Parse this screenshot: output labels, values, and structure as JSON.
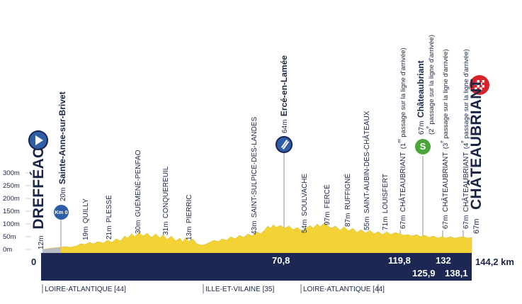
{
  "y_axis": {
    "ticks": [
      "300m",
      "250m",
      "200m",
      "150m",
      "100m",
      "50m",
      "0m"
    ]
  },
  "start": {
    "altitude": "12m",
    "name": "DREFFÉAC"
  },
  "km0": {
    "altitude": "20m",
    "name": "Sainte-Anne-sur-Brivet",
    "marker": "Km 0"
  },
  "places": [
    {
      "altitude": "19m",
      "name": "QUILLY"
    },
    {
      "altitude": "21m",
      "name": "PLESSÉ"
    },
    {
      "altitude": "30m",
      "name": "GUÉMENÉ-PENFAO"
    },
    {
      "altitude": "31m",
      "name": "CONQUEREUIL"
    },
    {
      "altitude": "13m",
      "name": "PIERRIC"
    },
    {
      "altitude": "43m",
      "name": "SAINT-SULPICE-DES-LANDES"
    },
    {
      "altitude": "54m",
      "name": "SOULVACHE"
    },
    {
      "altitude": "97m",
      "name": "FERCÉ"
    },
    {
      "altitude": "87m",
      "name": "RUFFIGNÉ"
    },
    {
      "altitude": "55m",
      "name": "SAINT-AUBIN-DES-CHÂTEAUX"
    },
    {
      "altitude": "71m",
      "name": "LOUISFERT"
    }
  ],
  "feed": {
    "altitude": "64m",
    "name": "Ercé-en-Lamée",
    "icon": "feed-zone-icon"
  },
  "passages": [
    {
      "altitude": "67m",
      "name": "CHÂTEAUBRIANT",
      "note": "(1",
      "sup": "er",
      "note2": " passage sur la ligne d'arrivée)"
    },
    {
      "altitude": "67m",
      "name": "CHÂTEAUBRIANT",
      "note": "(3",
      "sup": "e",
      "note2": " passage sur la ligne d'arrivée)"
    },
    {
      "altitude": "67m",
      "name": "CHÂTEAUBRIANT",
      "note": "(4",
      "sup": "e",
      "note2": " passage sur la ligne d'arrivée)"
    }
  ],
  "sprint": {
    "altitude": "67m",
    "name": "Châteaubriant",
    "note": "(2",
    "sup": "e",
    "note2": " passage sur la ligne d'arrivée)",
    "marker": "S"
  },
  "finish": {
    "altitude": "67m",
    "name": "CHÂTEAUBRIANT"
  },
  "km_marks": {
    "start": "0",
    "feed": "70,8",
    "p1": "119,8",
    "sprint": "125,9",
    "p3": "132",
    "p4": "138,1",
    "total": "144,2 km"
  },
  "departments": [
    "LOIRE-ATLANTIQUE [44]",
    "ILLE-ET-VILAINE [35]",
    "LOIRE-ATLANTIQUE [44]"
  ],
  "colors": {
    "profile": "#f2d235",
    "bar": "#1c2853",
    "text": "#1a2545",
    "marker_blue": "#2f5ea8",
    "sprint_green": "#4aa63a",
    "finish_red": "#d8232a"
  }
}
